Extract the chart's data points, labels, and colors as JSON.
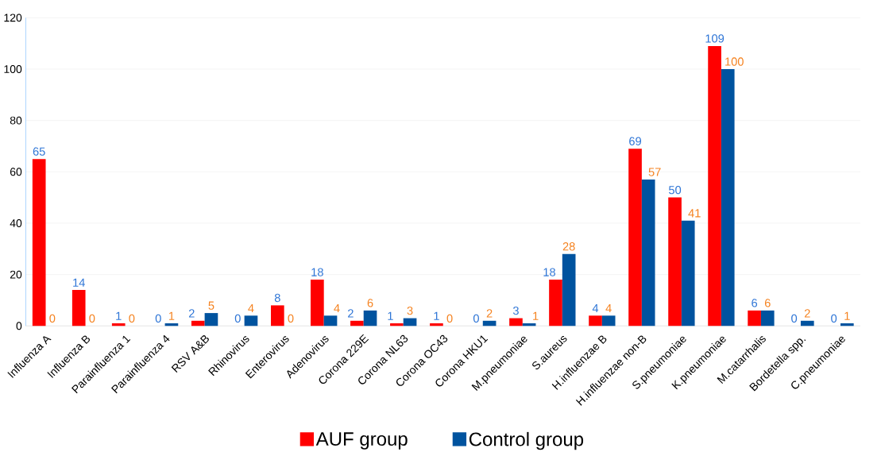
{
  "chart_data": {
    "type": "bar",
    "categories": [
      "Influenza A",
      "Influenza B",
      "Parainfluenza 1",
      "Parainfluenza 4",
      "RSV A&B",
      "Rhinovirus",
      "Enterovirus",
      "Adenovirus",
      "Corona 229E",
      "Corona NL63",
      "Corona OC43",
      "Corona HKU1",
      "M.pneumoniae",
      "S.aureus",
      "H.influenzae B",
      "H.influenzae non-B",
      "S.pneumoniae",
      "K.pneumoniae",
      "M.catarrhalis",
      "Bordetella spp.",
      "C.pneumoniae"
    ],
    "series": [
      {
        "name": "AUF group",
        "color": "#ff0000",
        "values": [
          65,
          14,
          1,
          0,
          2,
          0,
          8,
          18,
          2,
          1,
          1,
          0,
          3,
          18,
          4,
          69,
          50,
          109,
          6,
          0,
          0
        ]
      },
      {
        "name": "Control group",
        "color": "#00539f",
        "values": [
          0,
          0,
          0,
          1,
          5,
          4,
          0,
          4,
          6,
          3,
          0,
          2,
          1,
          28,
          4,
          57,
          41,
          100,
          6,
          2,
          1
        ]
      }
    ],
    "ylim": [
      0,
      120
    ],
    "yticks": [
      0,
      20,
      40,
      60,
      80,
      100,
      120
    ],
    "grid": "y",
    "legend": "bottom",
    "data_labels": true
  }
}
